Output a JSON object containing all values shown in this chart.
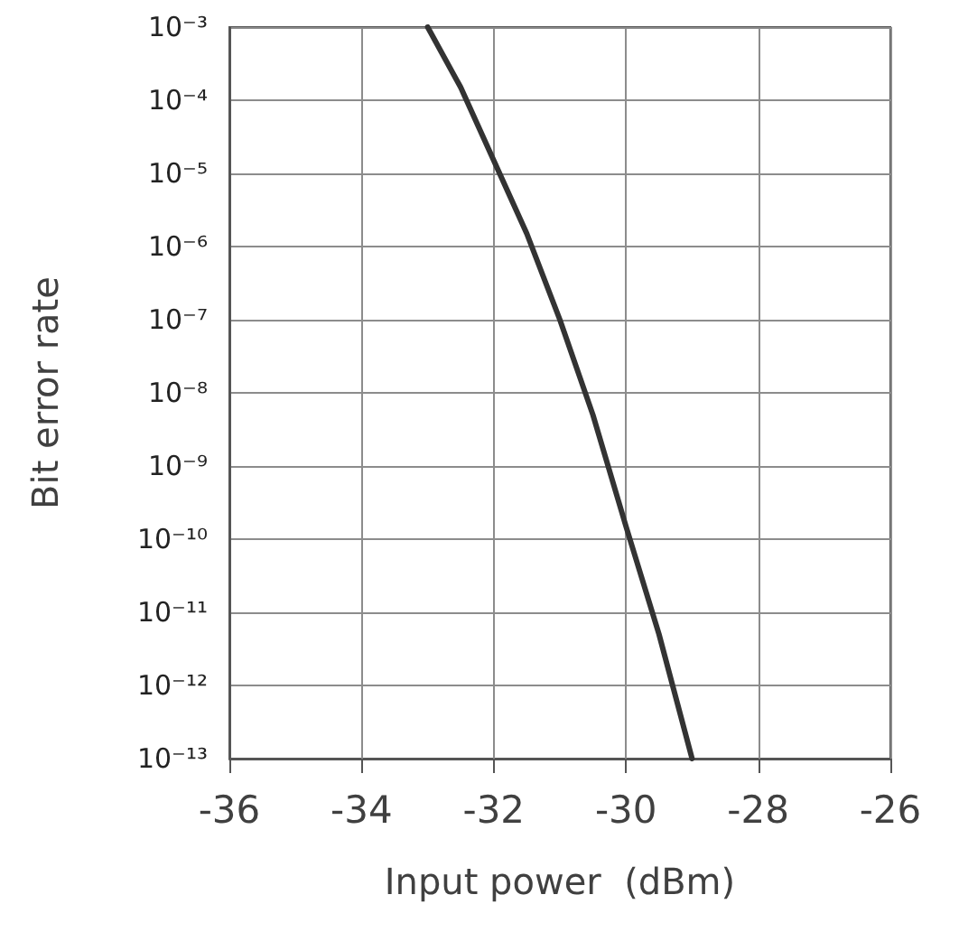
{
  "chart_data": {
    "type": "line",
    "xlabel": "Input power  (dBm)",
    "ylabel": "Bit error rate",
    "x": [
      -33,
      -32.5,
      -32,
      -31.5,
      -31,
      -30.5,
      -30,
      -29.5,
      -29
    ],
    "series": [
      {
        "color": "#333333",
        "values": [
          0.001,
          0.00015,
          1.5e-05,
          1.5e-06,
          1e-07,
          5e-09,
          1.5e-10,
          5e-12,
          1e-13
        ]
      }
    ],
    "xlim": [
      -36,
      -26
    ],
    "xticks": [
      -36,
      -34,
      -32,
      -30,
      -28,
      -26
    ],
    "ylim": [
      1e-13,
      0.001
    ],
    "yticks": [
      {
        "value": 0.001,
        "label": "10⁻³"
      },
      {
        "value": 0.0001,
        "label": "10⁻⁴"
      },
      {
        "value": 1e-05,
        "label": "10⁻⁵"
      },
      {
        "value": 1e-06,
        "label": "10⁻⁶"
      },
      {
        "value": 1e-07,
        "label": "10⁻⁷"
      },
      {
        "value": 1e-08,
        "label": "10⁻⁸"
      },
      {
        "value": 1e-09,
        "label": "10⁻⁹"
      },
      {
        "value": 1e-10,
        "label": "10⁻¹⁰"
      },
      {
        "value": 1e-11,
        "label": "10⁻¹¹"
      },
      {
        "value": 1e-12,
        "label": "10⁻¹²"
      },
      {
        "value": 1e-13,
        "label": "10⁻¹³"
      }
    ],
    "log": "y",
    "grid": true,
    "marker": "none",
    "line_style": "solid"
  }
}
